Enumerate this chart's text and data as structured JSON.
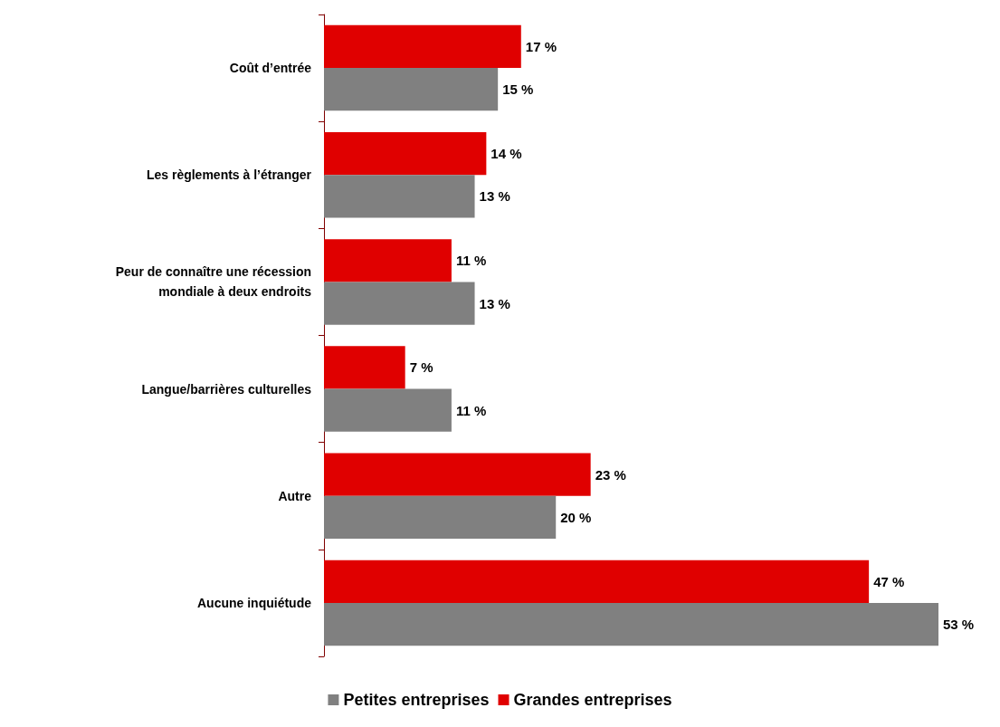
{
  "chart_data": {
    "type": "bar",
    "orientation": "horizontal",
    "categories": [
      "Coût d’entrée",
      "Les règlements à l’étranger",
      "Peur de connaître une récession\nmondiale à deux endroits",
      "Langue/barrières culturelles",
      "Autre",
      "Aucune inquiétude"
    ],
    "series": [
      {
        "name": "Petites entreprises",
        "color": "#808080",
        "values": [
          15,
          13,
          13,
          11,
          20,
          53
        ],
        "value_labels": [
          "15 %",
          "13 %",
          "13 %",
          "11 %",
          "20 %",
          "53 %"
        ]
      },
      {
        "name": "Grandes entreprises",
        "color": "#e00000",
        "values": [
          17,
          14,
          11,
          7,
          23,
          47
        ],
        "value_labels": [
          "17 %",
          "14 %",
          "11 %",
          "7 %",
          "23 %",
          "47 %"
        ]
      }
    ],
    "legend": "bottom",
    "grid": false
  }
}
